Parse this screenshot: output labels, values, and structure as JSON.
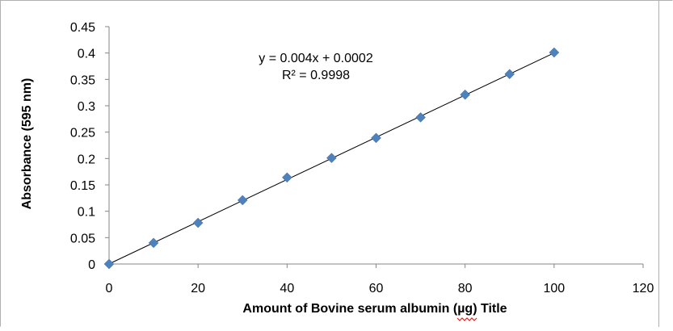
{
  "chart_data": {
    "type": "scatter",
    "title": "",
    "xlabel": "Amount of Bovine serum albumin (µg) Title",
    "ylabel": "Absorbance (595 nm)",
    "xlim": [
      0,
      120
    ],
    "ylim": [
      0,
      0.45
    ],
    "x_ticks": [
      "0",
      "20",
      "40",
      "60",
      "80",
      "100",
      "120"
    ],
    "y_ticks": [
      "0",
      "0.05",
      "0.1",
      "0.15",
      "0.2",
      "0.25",
      "0.3",
      "0.35",
      "0.4",
      "0.45"
    ],
    "grid": false,
    "legend": "none",
    "series": [
      {
        "marker_color": "#4f81bd",
        "x": [
          0,
          10,
          20,
          30,
          40,
          50,
          60,
          70,
          80,
          90,
          100
        ],
        "y": [
          0,
          0.04,
          0.078,
          0.121,
          0.164,
          0.201,
          0.239,
          0.278,
          0.321,
          0.36,
          0.401
        ]
      }
    ],
    "trendline": {
      "type": "linear",
      "slope": 0.004,
      "intercept": 0.0002,
      "color": "#000000",
      "equation_label": "y = 0.004x + 0.0002",
      "r2_label": "R² = 0.9998"
    }
  }
}
